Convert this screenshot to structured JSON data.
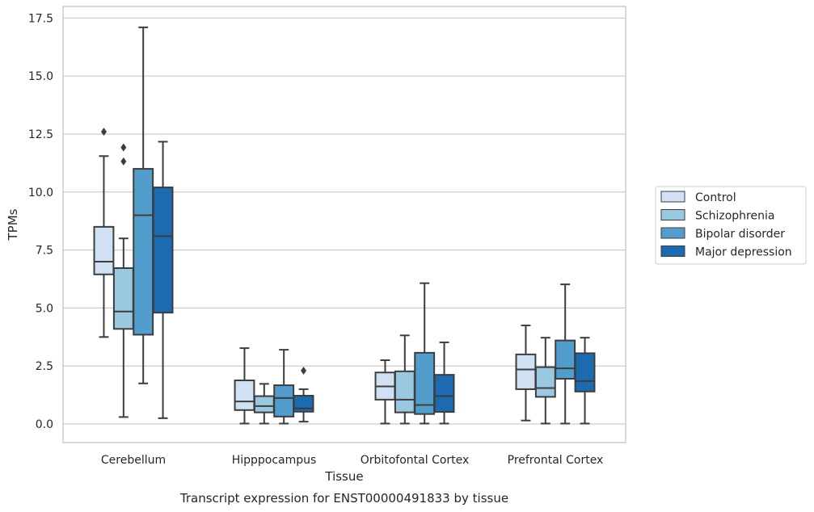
{
  "chart_data": {
    "type": "box",
    "title": "",
    "caption": "Transcript expression for ENST00000491833 by tissue",
    "xlabel": "Tissue",
    "ylabel": "TPMs",
    "ylim": [
      -0.8,
      18.0
    ],
    "yticks": [
      "0.0",
      "2.5",
      "5.0",
      "7.5",
      "10.0",
      "12.5",
      "15.0",
      "17.5"
    ],
    "ytick_values": [
      0,
      2.5,
      5,
      7.5,
      10,
      12.5,
      15,
      17.5
    ],
    "grid": "horizontal",
    "legend_position": "right",
    "categories": [
      "Cerebellum",
      "Hipppocampus",
      "Orbitofontal Cortex",
      "Prefrontal Cortex"
    ],
    "series": [
      {
        "name": "Control",
        "color": "#cfe1f2",
        "boxes": [
          {
            "whislo": 3.75,
            "q1": 6.45,
            "med": 7.0,
            "q3": 8.5,
            "whishi": 11.55,
            "fliers": [
              12.6
            ]
          },
          {
            "whislo": 0.02,
            "q1": 0.6,
            "med": 0.97,
            "q3": 1.88,
            "whishi": 3.27,
            "fliers": []
          },
          {
            "whislo": 0.02,
            "q1": 1.05,
            "med": 1.62,
            "q3": 2.22,
            "whishi": 2.75,
            "fliers": []
          },
          {
            "whislo": 0.15,
            "q1": 1.5,
            "med": 2.35,
            "q3": 3.0,
            "whishi": 4.25,
            "fliers": []
          }
        ]
      },
      {
        "name": "Schizophrenia",
        "color": "#9ac8e0",
        "boxes": [
          {
            "whislo": 0.3,
            "q1": 4.1,
            "med": 4.85,
            "q3": 6.72,
            "whishi": 8.0,
            "fliers": [
              11.92,
              11.32
            ]
          },
          {
            "whislo": 0.02,
            "q1": 0.5,
            "med": 0.77,
            "q3": 1.2,
            "whishi": 1.73,
            "fliers": []
          },
          {
            "whislo": 0.02,
            "q1": 0.5,
            "med": 1.05,
            "q3": 2.27,
            "whishi": 3.82,
            "fliers": []
          },
          {
            "whislo": 0.02,
            "q1": 1.17,
            "med": 1.55,
            "q3": 2.45,
            "whishi": 3.72,
            "fliers": []
          }
        ]
      },
      {
        "name": "Bipolar disorder",
        "color": "#529dcc",
        "boxes": [
          {
            "whislo": 1.75,
            "q1": 3.85,
            "med": 9.0,
            "q3": 11.0,
            "whishi": 17.1,
            "fliers": []
          },
          {
            "whislo": 0.02,
            "q1": 0.32,
            "med": 1.12,
            "q3": 1.67,
            "whishi": 3.2,
            "fliers": []
          },
          {
            "whislo": 0.02,
            "q1": 0.43,
            "med": 0.82,
            "q3": 3.07,
            "whishi": 6.07,
            "fliers": []
          },
          {
            "whislo": 0.02,
            "q1": 1.95,
            "med": 2.4,
            "q3": 3.6,
            "whishi": 6.02,
            "fliers": []
          }
        ]
      },
      {
        "name": "Major depression",
        "color": "#1c6aaf",
        "boxes": [
          {
            "whislo": 0.25,
            "q1": 4.8,
            "med": 8.1,
            "q3": 10.2,
            "whishi": 12.17,
            "fliers": []
          },
          {
            "whislo": 0.1,
            "q1": 0.53,
            "med": 0.67,
            "q3": 1.22,
            "whishi": 1.5,
            "fliers": [
              2.3
            ]
          },
          {
            "whislo": 0.02,
            "q1": 0.52,
            "med": 1.2,
            "q3": 2.12,
            "whishi": 3.52,
            "fliers": []
          },
          {
            "whislo": 0.02,
            "q1": 1.4,
            "med": 1.85,
            "q3": 3.05,
            "whishi": 3.72,
            "fliers": []
          }
        ]
      }
    ]
  }
}
